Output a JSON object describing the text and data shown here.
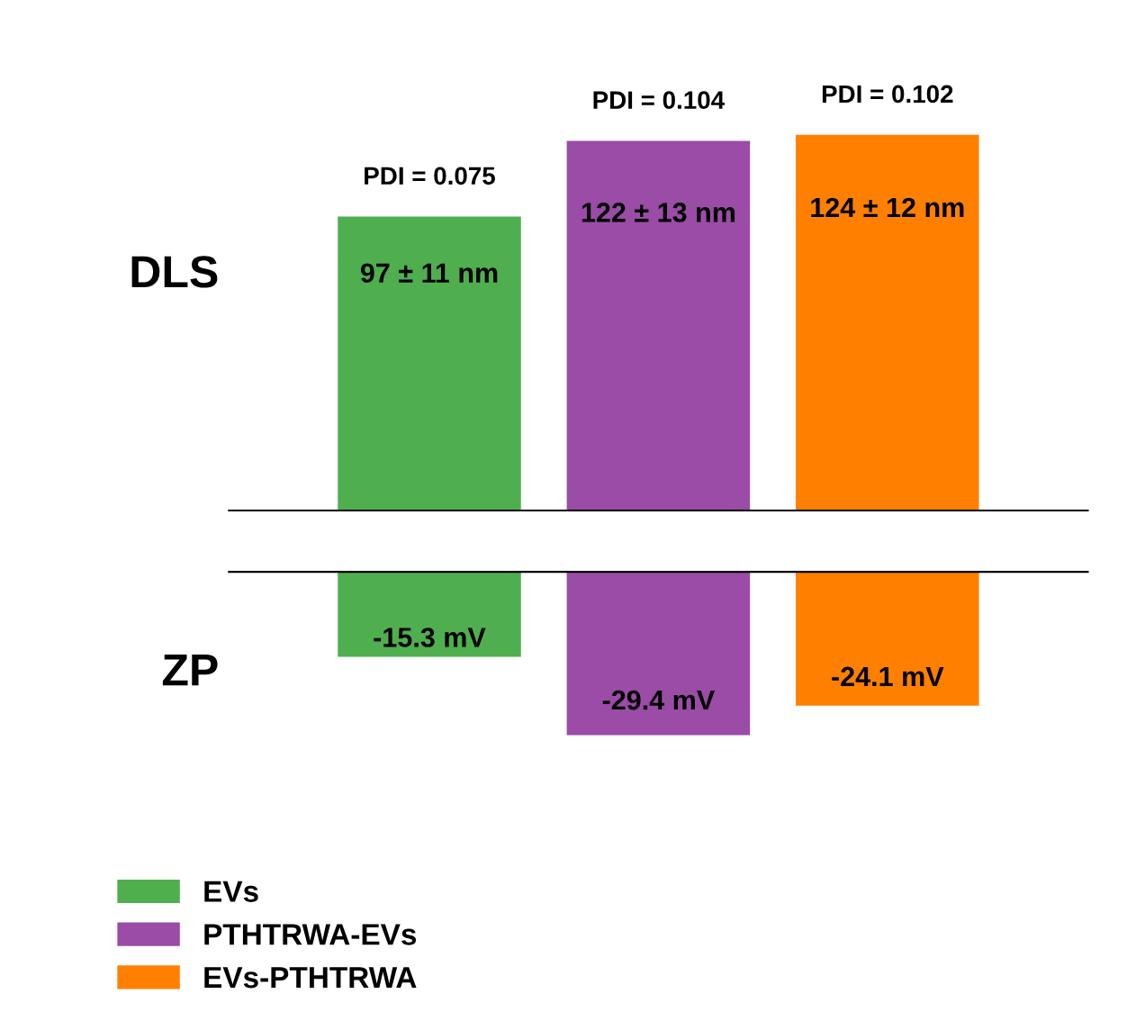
{
  "chart_data": [
    {
      "type": "bar",
      "ylabel": "DLS",
      "categories": [
        null
      ],
      "legend": "bottom",
      "series": [
        {
          "name": "EVs",
          "color": "#4faf4f",
          "values": [
            97
          ],
          "value_labels": [
            "97 ± 11 nm"
          ]
        },
        {
          "name": "PTHTRWA-EVs",
          "color": "#9a4ca6",
          "values": [
            122
          ],
          "value_labels": [
            "122 ± 13 nm"
          ]
        },
        {
          "name": "EVs-PTHTRWA",
          "color": "#ff8000",
          "values": [
            124
          ],
          "value_labels": [
            "124 ± 12 nm"
          ]
        }
      ],
      "annotations": [
        "PDI = 0.075",
        "PDI = 0.104",
        "PDI = 0.102"
      ]
    },
    {
      "type": "bar",
      "ylabel": "ZP",
      "categories": [
        null
      ],
      "series": [
        {
          "color": "#4faf4f",
          "values": [
            -15.3
          ],
          "value_labels": [
            "-15.3 mV"
          ]
        },
        {
          "color": "#9a4ca6",
          "values": [
            -29.4
          ],
          "value_labels": [
            "-29.4 mV"
          ]
        },
        {
          "color": "#ff8000",
          "values": [
            -24.1
          ],
          "value_labels": [
            "-24.1 mV"
          ]
        }
      ]
    }
  ]
}
